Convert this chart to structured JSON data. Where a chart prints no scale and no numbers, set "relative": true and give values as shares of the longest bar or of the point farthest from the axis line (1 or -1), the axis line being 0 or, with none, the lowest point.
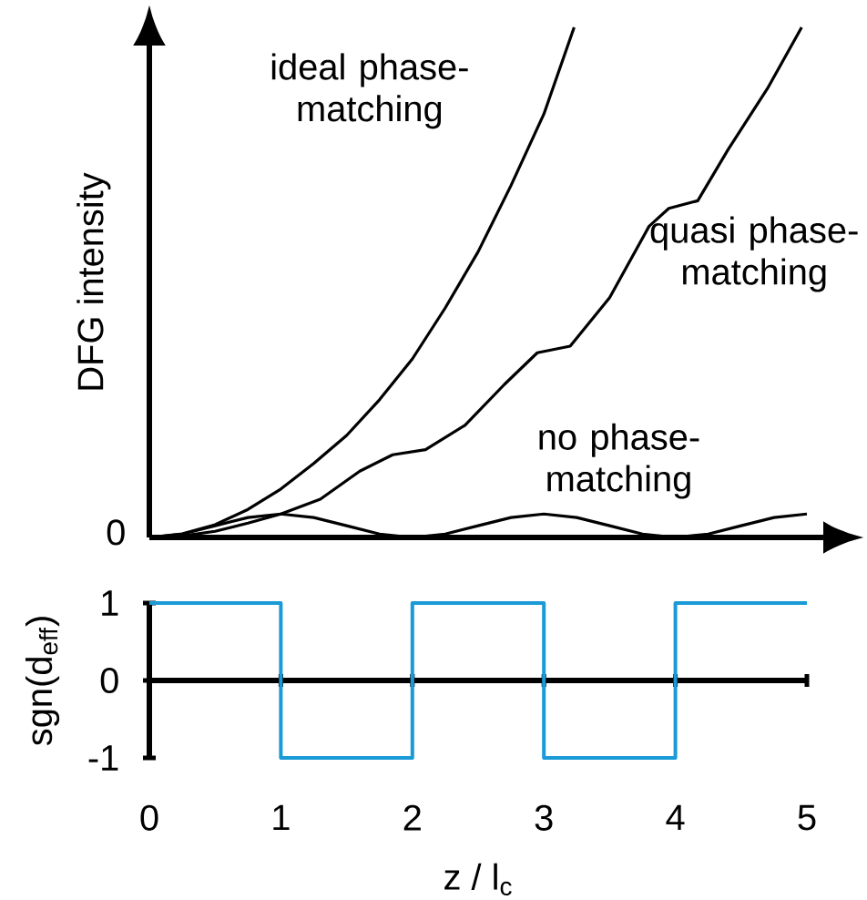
{
  "chart_data": [
    {
      "type": "line",
      "relative": true,
      "ylabel": "DFG intensity",
      "xlim": [
        0,
        5
      ],
      "marker": "none",
      "line_style": "solid",
      "annotations": [
        "0"
      ],
      "series": [
        {
          "name": "ideal phase-matching",
          "color": "#000000",
          "x": [
            0,
            0.25,
            0.5,
            0.75,
            1,
            1.25,
            1.5,
            1.75,
            2,
            2.25,
            2.5,
            2.75,
            3,
            3.23
          ],
          "values": [
            0,
            0.007,
            0.025,
            0.055,
            0.095,
            0.145,
            0.2,
            0.27,
            0.35,
            0.45,
            0.56,
            0.69,
            0.83,
            1.0
          ]
        },
        {
          "name": "quasi phase-matching",
          "color": "#000000",
          "x": [
            0,
            0.25,
            0.5,
            0.75,
            1,
            1.3,
            1.6,
            1.85,
            2.1,
            2.4,
            2.7,
            2.95,
            3.2,
            3.5,
            3.8,
            3.95,
            4.17,
            4.4,
            4.7,
            4.96
          ],
          "values": [
            0,
            0.003,
            0.012,
            0.028,
            0.046,
            0.075,
            0.13,
            0.162,
            0.172,
            0.22,
            0.3,
            0.362,
            0.375,
            0.47,
            0.61,
            0.645,
            0.66,
            0.76,
            0.88,
            1.0
          ]
        },
        {
          "name": "no phase-matching",
          "color": "#000000",
          "x": [
            0,
            0.25,
            0.5,
            0.75,
            1,
            1.25,
            1.5,
            1.75,
            2,
            2.25,
            2.5,
            2.75,
            3,
            3.25,
            3.5,
            3.75,
            4,
            4.25,
            4.5,
            4.75,
            5
          ],
          "values": [
            0,
            0.0067,
            0.023,
            0.039,
            0.046,
            0.039,
            0.023,
            0.0067,
            0,
            0.0067,
            0.023,
            0.039,
            0.046,
            0.039,
            0.023,
            0.0067,
            0,
            0.0067,
            0.023,
            0.039,
            0.046
          ]
        }
      ]
    },
    {
      "type": "step",
      "xlabel": "z / l$_{c}$",
      "ylabel": "sgn(d$_{eff}$)",
      "xlim": [
        0,
        5
      ],
      "xticks": [
        0,
        1,
        2,
        3,
        4,
        5
      ],
      "ylim": [
        -1,
        1
      ],
      "yticks": [
        -1,
        0,
        1
      ],
      "marker": "none",
      "line_style": "solid",
      "x": [
        0,
        1,
        2,
        3,
        4,
        5
      ],
      "values": [
        1,
        -1,
        1,
        -1,
        1,
        1
      ],
      "color": "#1a9ad6"
    }
  ]
}
